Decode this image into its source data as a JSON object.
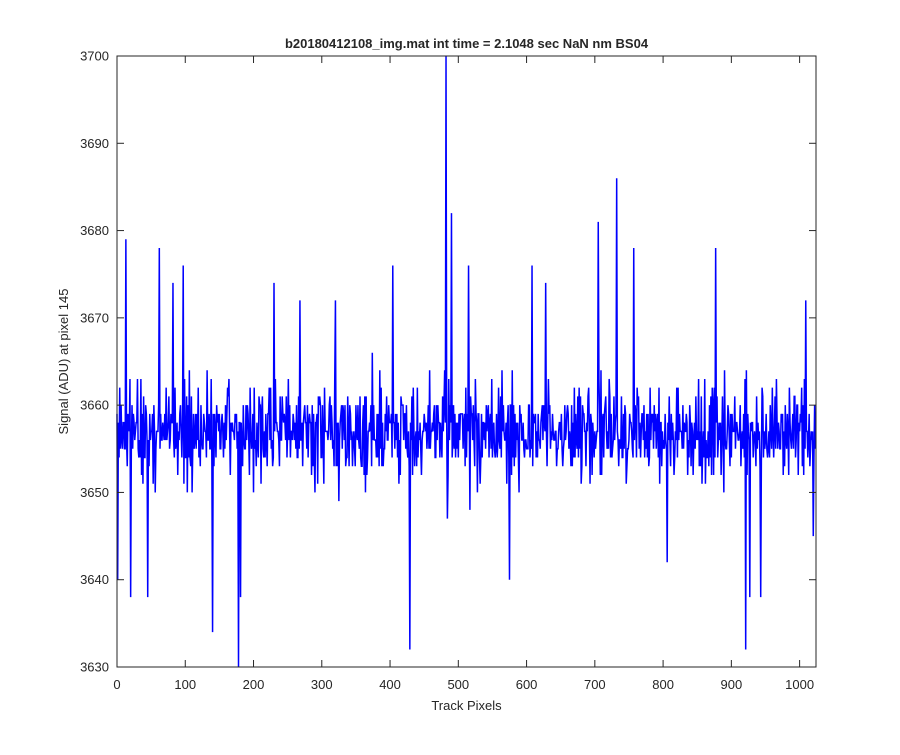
{
  "chart_data": {
    "type": "line",
    "title": "b20180412108_img.mat int time = 2.1048 sec  NaN nm BS04",
    "xlabel": "Track Pixels",
    "ylabel": "Signal (ADU) at pixel 145",
    "xlim": [
      0,
      1024
    ],
    "ylim": [
      3630,
      3700
    ],
    "xticks": [
      "0",
      "100",
      "200",
      "300",
      "400",
      "500",
      "600",
      "700",
      "800",
      "900",
      "1000"
    ],
    "yticks": [
      "3630",
      "3640",
      "3650",
      "3660",
      "3670",
      "3680",
      "3690",
      "3700"
    ],
    "grid": false,
    "series_color": "#0000ff",
    "series": [
      {
        "baseline": 3657,
        "noise_amplitude": 7,
        "n_points": 1024,
        "notable_points": [
          {
            "x": 1,
            "y": 3640
          },
          {
            "x": 13,
            "y": 3679
          },
          {
            "x": 20,
            "y": 3638
          },
          {
            "x": 45,
            "y": 3638
          },
          {
            "x": 62,
            "y": 3678
          },
          {
            "x": 82,
            "y": 3674
          },
          {
            "x": 97,
            "y": 3676
          },
          {
            "x": 140,
            "y": 3634
          },
          {
            "x": 178,
            "y": 3630
          },
          {
            "x": 181,
            "y": 3638
          },
          {
            "x": 230,
            "y": 3674
          },
          {
            "x": 268,
            "y": 3672
          },
          {
            "x": 320,
            "y": 3672
          },
          {
            "x": 404,
            "y": 3676
          },
          {
            "x": 429,
            "y": 3632
          },
          {
            "x": 482,
            "y": 3700
          },
          {
            "x": 484,
            "y": 3647
          },
          {
            "x": 490,
            "y": 3682
          },
          {
            "x": 515,
            "y": 3676
          },
          {
            "x": 575,
            "y": 3640
          },
          {
            "x": 608,
            "y": 3676
          },
          {
            "x": 628,
            "y": 3674
          },
          {
            "x": 705,
            "y": 3681
          },
          {
            "x": 732,
            "y": 3686
          },
          {
            "x": 757,
            "y": 3678
          },
          {
            "x": 806,
            "y": 3642
          },
          {
            "x": 877,
            "y": 3678
          },
          {
            "x": 921,
            "y": 3632
          },
          {
            "x": 927,
            "y": 3638
          },
          {
            "x": 943,
            "y": 3638
          },
          {
            "x": 1009,
            "y": 3672
          },
          {
            "x": 1020,
            "y": 3645
          }
        ]
      }
    ]
  }
}
